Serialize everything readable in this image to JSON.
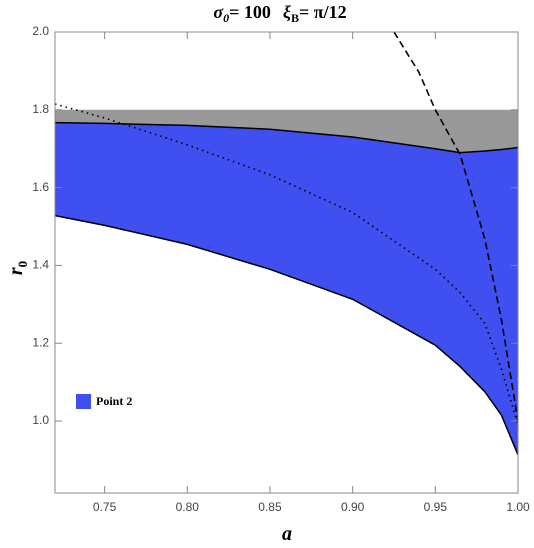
{
  "chart_data": {
    "type": "region",
    "title": [
      "σ",
      "0",
      "= 100",
      "ξ",
      "B",
      "= π/12"
    ],
    "y_label": [
      "r",
      "0"
    ],
    "x_label": "a",
    "xlim": [
      0.72,
      1.0
    ],
    "ylim": [
      0.815,
      2.0
    ],
    "xticks": [
      0.75,
      {
        "value": 0.8,
        "label": "0.80"
      },
      0.85,
      {
        "value": 0.9,
        "label": "0.90"
      },
      0.95,
      {
        "value": 1.0,
        "label": "1.00"
      }
    ],
    "yticks": [
      {
        "value": 1.0,
        "label": "1.0"
      },
      1.2,
      1.4,
      1.6,
      1.8,
      {
        "value": 2.0,
        "label": "2.0"
      }
    ],
    "areas": [
      {
        "color": "#999999",
        "x": [
          0.72,
          0.75,
          0.8,
          0.85,
          0.9,
          0.95,
          0.965,
          0.98,
          0.99,
          1.0
        ],
        "lower": [
          1.767,
          1.765,
          1.76,
          1.75,
          1.73,
          1.7,
          1.69,
          1.694,
          1.698,
          1.703
        ],
        "upper": [
          1.8,
          1.8,
          1.8,
          1.8,
          1.8,
          1.8,
          1.8,
          1.8,
          1.8,
          1.8
        ]
      },
      {
        "name": "Point 2",
        "color": "#3f4ff0",
        "x": [
          0.72,
          0.75,
          0.8,
          0.85,
          0.9,
          0.95,
          0.965,
          0.98,
          0.99,
          1.0
        ],
        "lower": [
          1.528,
          1.503,
          1.454,
          1.39,
          1.313,
          1.195,
          1.14,
          1.075,
          1.015,
          0.913
        ],
        "upper": [
          1.767,
          1.765,
          1.76,
          1.75,
          1.73,
          1.7,
          1.69,
          1.694,
          1.698,
          1.703
        ]
      }
    ],
    "lines": [
      {
        "dash": "dotted",
        "x": [
          0.72,
          0.75,
          0.8,
          0.85,
          0.9,
          0.95,
          0.965,
          0.98,
          0.99,
          1.0
        ],
        "values": [
          1.815,
          1.779,
          1.71,
          1.633,
          1.536,
          1.39,
          1.33,
          1.25,
          1.133,
          0.99
        ]
      },
      {
        "dash": "dashed",
        "x": [
          0.925,
          0.94,
          0.95,
          0.965,
          0.98,
          0.99,
          1.0
        ],
        "values": [
          2.0,
          1.897,
          1.8,
          1.685,
          1.467,
          1.26,
          1.0
        ]
      }
    ]
  }
}
